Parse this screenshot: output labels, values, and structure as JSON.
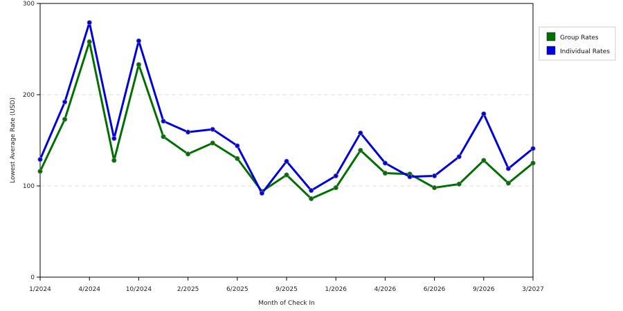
{
  "chart_data": {
    "type": "line",
    "xlabel": "Month of Check In",
    "ylabel": "Lowest Average Rate (USD)",
    "ylim": [
      0,
      300
    ],
    "y_ticks": [
      "0",
      "100",
      "200",
      "300"
    ],
    "x_tick_labels": [
      "1/2024",
      "4/2024",
      "10/2024",
      "2/2025",
      "6/2025",
      "9/2025",
      "1/2026",
      "4/2026",
      "6/2026",
      "9/2026",
      "3/2027"
    ],
    "x_tick_indices": [
      0,
      2,
      4,
      6,
      8,
      10,
      12,
      14,
      16,
      18,
      20
    ],
    "grid": "horizontal dashed",
    "legend_position": "right",
    "series": [
      {
        "name": "Group Rates",
        "color": "#007000",
        "values": [
          116,
          173,
          258,
          128,
          233,
          154,
          135,
          147,
          130,
          94,
          112,
          86,
          98,
          139,
          114,
          113,
          98,
          102,
          128,
          103,
          125
        ]
      },
      {
        "name": "Individual Rates",
        "color": "#0000dd",
        "values": [
          129,
          192,
          279,
          152,
          259,
          171,
          159,
          162,
          144,
          92,
          127,
          95,
          111,
          158,
          125,
          110,
          111,
          132,
          179,
          119,
          141
        ]
      }
    ]
  }
}
